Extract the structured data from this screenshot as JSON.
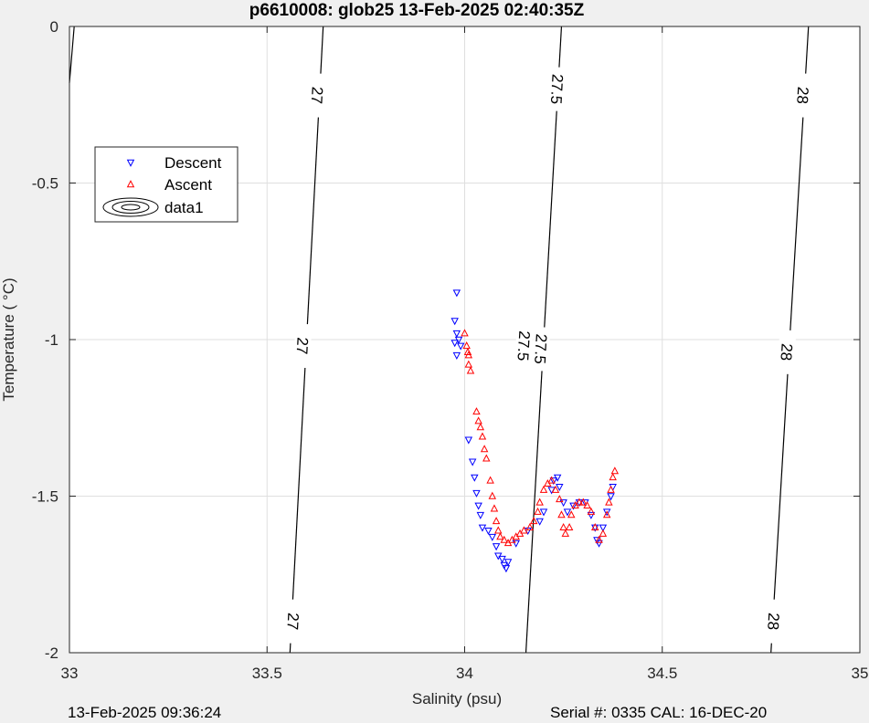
{
  "chart_data": {
    "type": "scatter",
    "title": "p6610008: glob25 13-Feb-2025 02:40:35Z",
    "xlabel": "Salinity (psu)",
    "ylabel": "Temperature (   °C)",
    "xlim": [
      33,
      35
    ],
    "ylim": [
      -2,
      0
    ],
    "xticks": [
      33,
      33.5,
      34,
      34.5,
      35
    ],
    "xtick_labels": [
      "33",
      "33.5",
      "34",
      "34.5",
      "35"
    ],
    "yticks": [
      0,
      -0.5,
      -1,
      -1.5,
      -2
    ],
    "ytick_labels": [
      "0",
      "-0.5",
      "-1",
      "-1.5",
      "-2"
    ],
    "grid": true,
    "legend": {
      "placement": "top-left",
      "entries": [
        {
          "label": "Descent",
          "marker": "triangle-down",
          "color": "#0000ff"
        },
        {
          "label": "Ascent",
          "marker": "triangle-up",
          "color": "#ff0000"
        },
        {
          "label": "data1",
          "marker": "contour",
          "color": "#000000"
        }
      ]
    },
    "contours": [
      {
        "label": "27",
        "points": [
          [
            33.558,
            -2
          ],
          [
            33.642,
            0
          ]
        ],
        "label_positions": [
          [
            33.627,
            -0.22
          ],
          [
            33.59,
            -1.02
          ],
          [
            33.566,
            -1.9
          ]
        ]
      },
      {
        "label": "27.5",
        "points": [
          [
            34.155,
            -2
          ],
          [
            34.245,
            0
          ]
        ],
        "label_positions": [
          [
            34.234,
            -0.2
          ],
          [
            34.193,
            -1.03
          ],
          [
            34.15,
            -1.02
          ]
        ]
      },
      {
        "label": "28",
        "points": [
          [
            34.775,
            -2
          ],
          [
            34.87,
            0
          ]
        ],
        "label_positions": [
          [
            34.856,
            -0.22
          ],
          [
            34.815,
            -1.04
          ],
          [
            34.782,
            -1.9
          ]
        ]
      },
      {
        "label": "",
        "points": [
          [
            33.0,
            -0.18
          ],
          [
            33.012,
            0
          ]
        ],
        "label_positions": []
      }
    ],
    "series": [
      {
        "name": "Descent",
        "marker": "triangle-down",
        "color": "#0000ff",
        "points": [
          [
            33.98,
            -0.85
          ],
          [
            33.975,
            -0.94
          ],
          [
            33.98,
            -0.98
          ],
          [
            33.985,
            -1.0
          ],
          [
            33.975,
            -1.01
          ],
          [
            33.99,
            -1.02
          ],
          [
            33.98,
            -1.05
          ],
          [
            34.01,
            -1.32
          ],
          [
            34.02,
            -1.39
          ],
          [
            34.025,
            -1.44
          ],
          [
            34.03,
            -1.49
          ],
          [
            34.035,
            -1.53
          ],
          [
            34.04,
            -1.56
          ],
          [
            34.045,
            -1.6
          ],
          [
            34.06,
            -1.61
          ],
          [
            34.07,
            -1.63
          ],
          [
            34.08,
            -1.66
          ],
          [
            34.085,
            -1.69
          ],
          [
            34.095,
            -1.7
          ],
          [
            34.1,
            -1.72
          ],
          [
            34.105,
            -1.73
          ],
          [
            34.11,
            -1.71
          ],
          [
            34.13,
            -1.65
          ],
          [
            34.16,
            -1.61
          ],
          [
            34.19,
            -1.58
          ],
          [
            34.2,
            -1.55
          ],
          [
            34.22,
            -1.48
          ],
          [
            34.225,
            -1.45
          ],
          [
            34.235,
            -1.44
          ],
          [
            34.24,
            -1.47
          ],
          [
            34.25,
            -1.52
          ],
          [
            34.26,
            -1.55
          ],
          [
            34.275,
            -1.53
          ],
          [
            34.29,
            -1.52
          ],
          [
            34.305,
            -1.52
          ],
          [
            34.32,
            -1.56
          ],
          [
            34.33,
            -1.6
          ],
          [
            34.335,
            -1.64
          ],
          [
            34.34,
            -1.65
          ],
          [
            34.35,
            -1.6
          ],
          [
            34.36,
            -1.55
          ],
          [
            34.37,
            -1.5
          ],
          [
            34.375,
            -1.47
          ]
        ]
      },
      {
        "name": "Ascent",
        "marker": "triangle-up",
        "color": "#ff0000",
        "points": [
          [
            34.0,
            -0.98
          ],
          [
            34.005,
            -1.02
          ],
          [
            34.01,
            -1.05
          ],
          [
            34.01,
            -1.08
          ],
          [
            34.015,
            -1.1
          ],
          [
            34.008,
            -1.04
          ],
          [
            34.03,
            -1.23
          ],
          [
            34.035,
            -1.26
          ],
          [
            34.04,
            -1.28
          ],
          [
            34.045,
            -1.31
          ],
          [
            34.05,
            -1.35
          ],
          [
            34.055,
            -1.38
          ],
          [
            34.065,
            -1.45
          ],
          [
            34.07,
            -1.5
          ],
          [
            34.075,
            -1.54
          ],
          [
            34.08,
            -1.58
          ],
          [
            34.085,
            -1.61
          ],
          [
            34.09,
            -1.63
          ],
          [
            34.1,
            -1.64
          ],
          [
            34.11,
            -1.65
          ],
          [
            34.12,
            -1.64
          ],
          [
            34.13,
            -1.63
          ],
          [
            34.14,
            -1.62
          ],
          [
            34.15,
            -1.61
          ],
          [
            34.165,
            -1.6
          ],
          [
            34.175,
            -1.58
          ],
          [
            34.185,
            -1.55
          ],
          [
            34.19,
            -1.52
          ],
          [
            34.2,
            -1.48
          ],
          [
            34.21,
            -1.46
          ],
          [
            34.22,
            -1.45
          ],
          [
            34.23,
            -1.48
          ],
          [
            34.24,
            -1.51
          ],
          [
            34.245,
            -1.56
          ],
          [
            34.25,
            -1.6
          ],
          [
            34.255,
            -1.62
          ],
          [
            34.265,
            -1.6
          ],
          [
            34.27,
            -1.56
          ],
          [
            34.28,
            -1.53
          ],
          [
            34.29,
            -1.52
          ],
          [
            34.3,
            -1.52
          ],
          [
            34.31,
            -1.53
          ],
          [
            34.32,
            -1.55
          ],
          [
            34.33,
            -1.6
          ],
          [
            34.34,
            -1.64
          ],
          [
            34.35,
            -1.62
          ],
          [
            34.36,
            -1.56
          ],
          [
            34.365,
            -1.52
          ],
          [
            34.37,
            -1.48
          ],
          [
            34.375,
            -1.44
          ],
          [
            34.38,
            -1.42
          ]
        ]
      }
    ]
  },
  "footer": {
    "left": "13-Feb-2025 09:36:24",
    "right": "Serial #: 0335  CAL: 16-DEC-20"
  }
}
